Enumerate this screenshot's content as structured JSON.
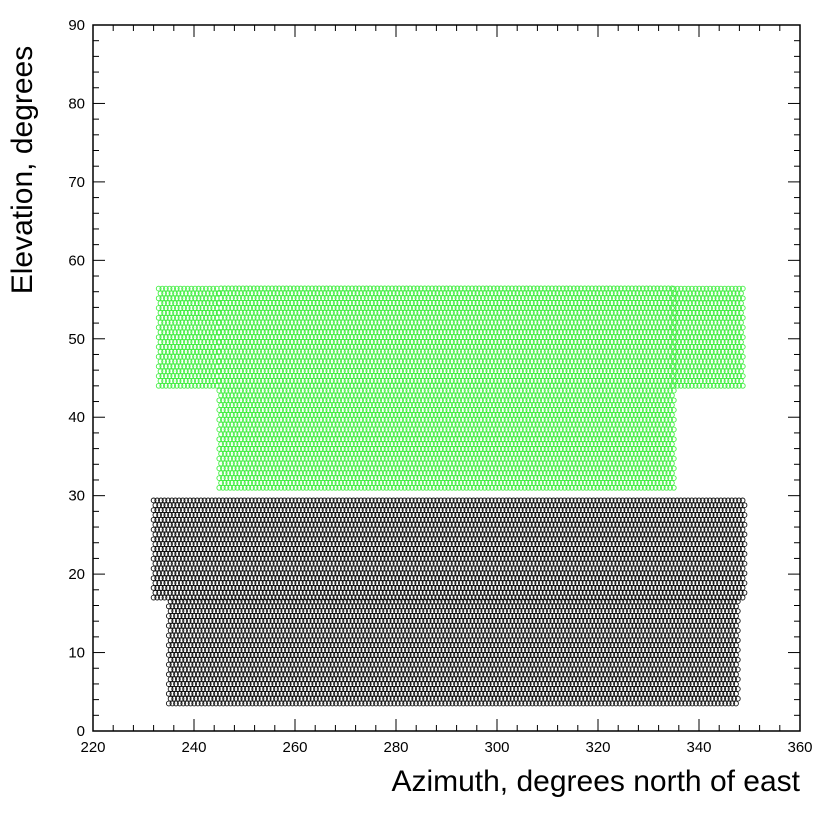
{
  "chart_data": {
    "type": "scatter",
    "xlabel": "Azimuth, degrees north of east",
    "ylabel": "Elevation, degrees",
    "xlim": [
      220,
      360
    ],
    "ylim": [
      0,
      90
    ],
    "x_ticks": [
      220,
      240,
      260,
      280,
      300,
      320,
      340,
      360
    ],
    "y_ticks": [
      0,
      10,
      20,
      30,
      40,
      50,
      60,
      70,
      80,
      90
    ],
    "x_tick_labels": [
      "220",
      "240",
      "260",
      "280",
      "300",
      "320",
      "340",
      "360"
    ],
    "y_tick_labels": [
      "0",
      "10",
      "20",
      "30",
      "40",
      "50",
      "60",
      "70",
      "80",
      "90"
    ],
    "grid": false,
    "legend": "none",
    "series": [
      {
        "color": "#44ee44",
        "marker": "hollow-circle",
        "regions": [
          {
            "x": [
              233,
              245
            ],
            "y": [
              44,
              57
            ]
          },
          {
            "x": [
              245,
              335
            ],
            "y": [
              31,
              57
            ]
          },
          {
            "x": [
              335,
              349
            ],
            "y": [
              44,
              57
            ]
          }
        ]
      },
      {
        "color": "#111111",
        "marker": "hollow-circle",
        "regions": [
          {
            "x": [
              232,
              349
            ],
            "y": [
              17,
              30
            ]
          },
          {
            "x": [
              235,
              348
            ],
            "y": [
              3.5,
              17
            ]
          }
        ]
      }
    ]
  }
}
